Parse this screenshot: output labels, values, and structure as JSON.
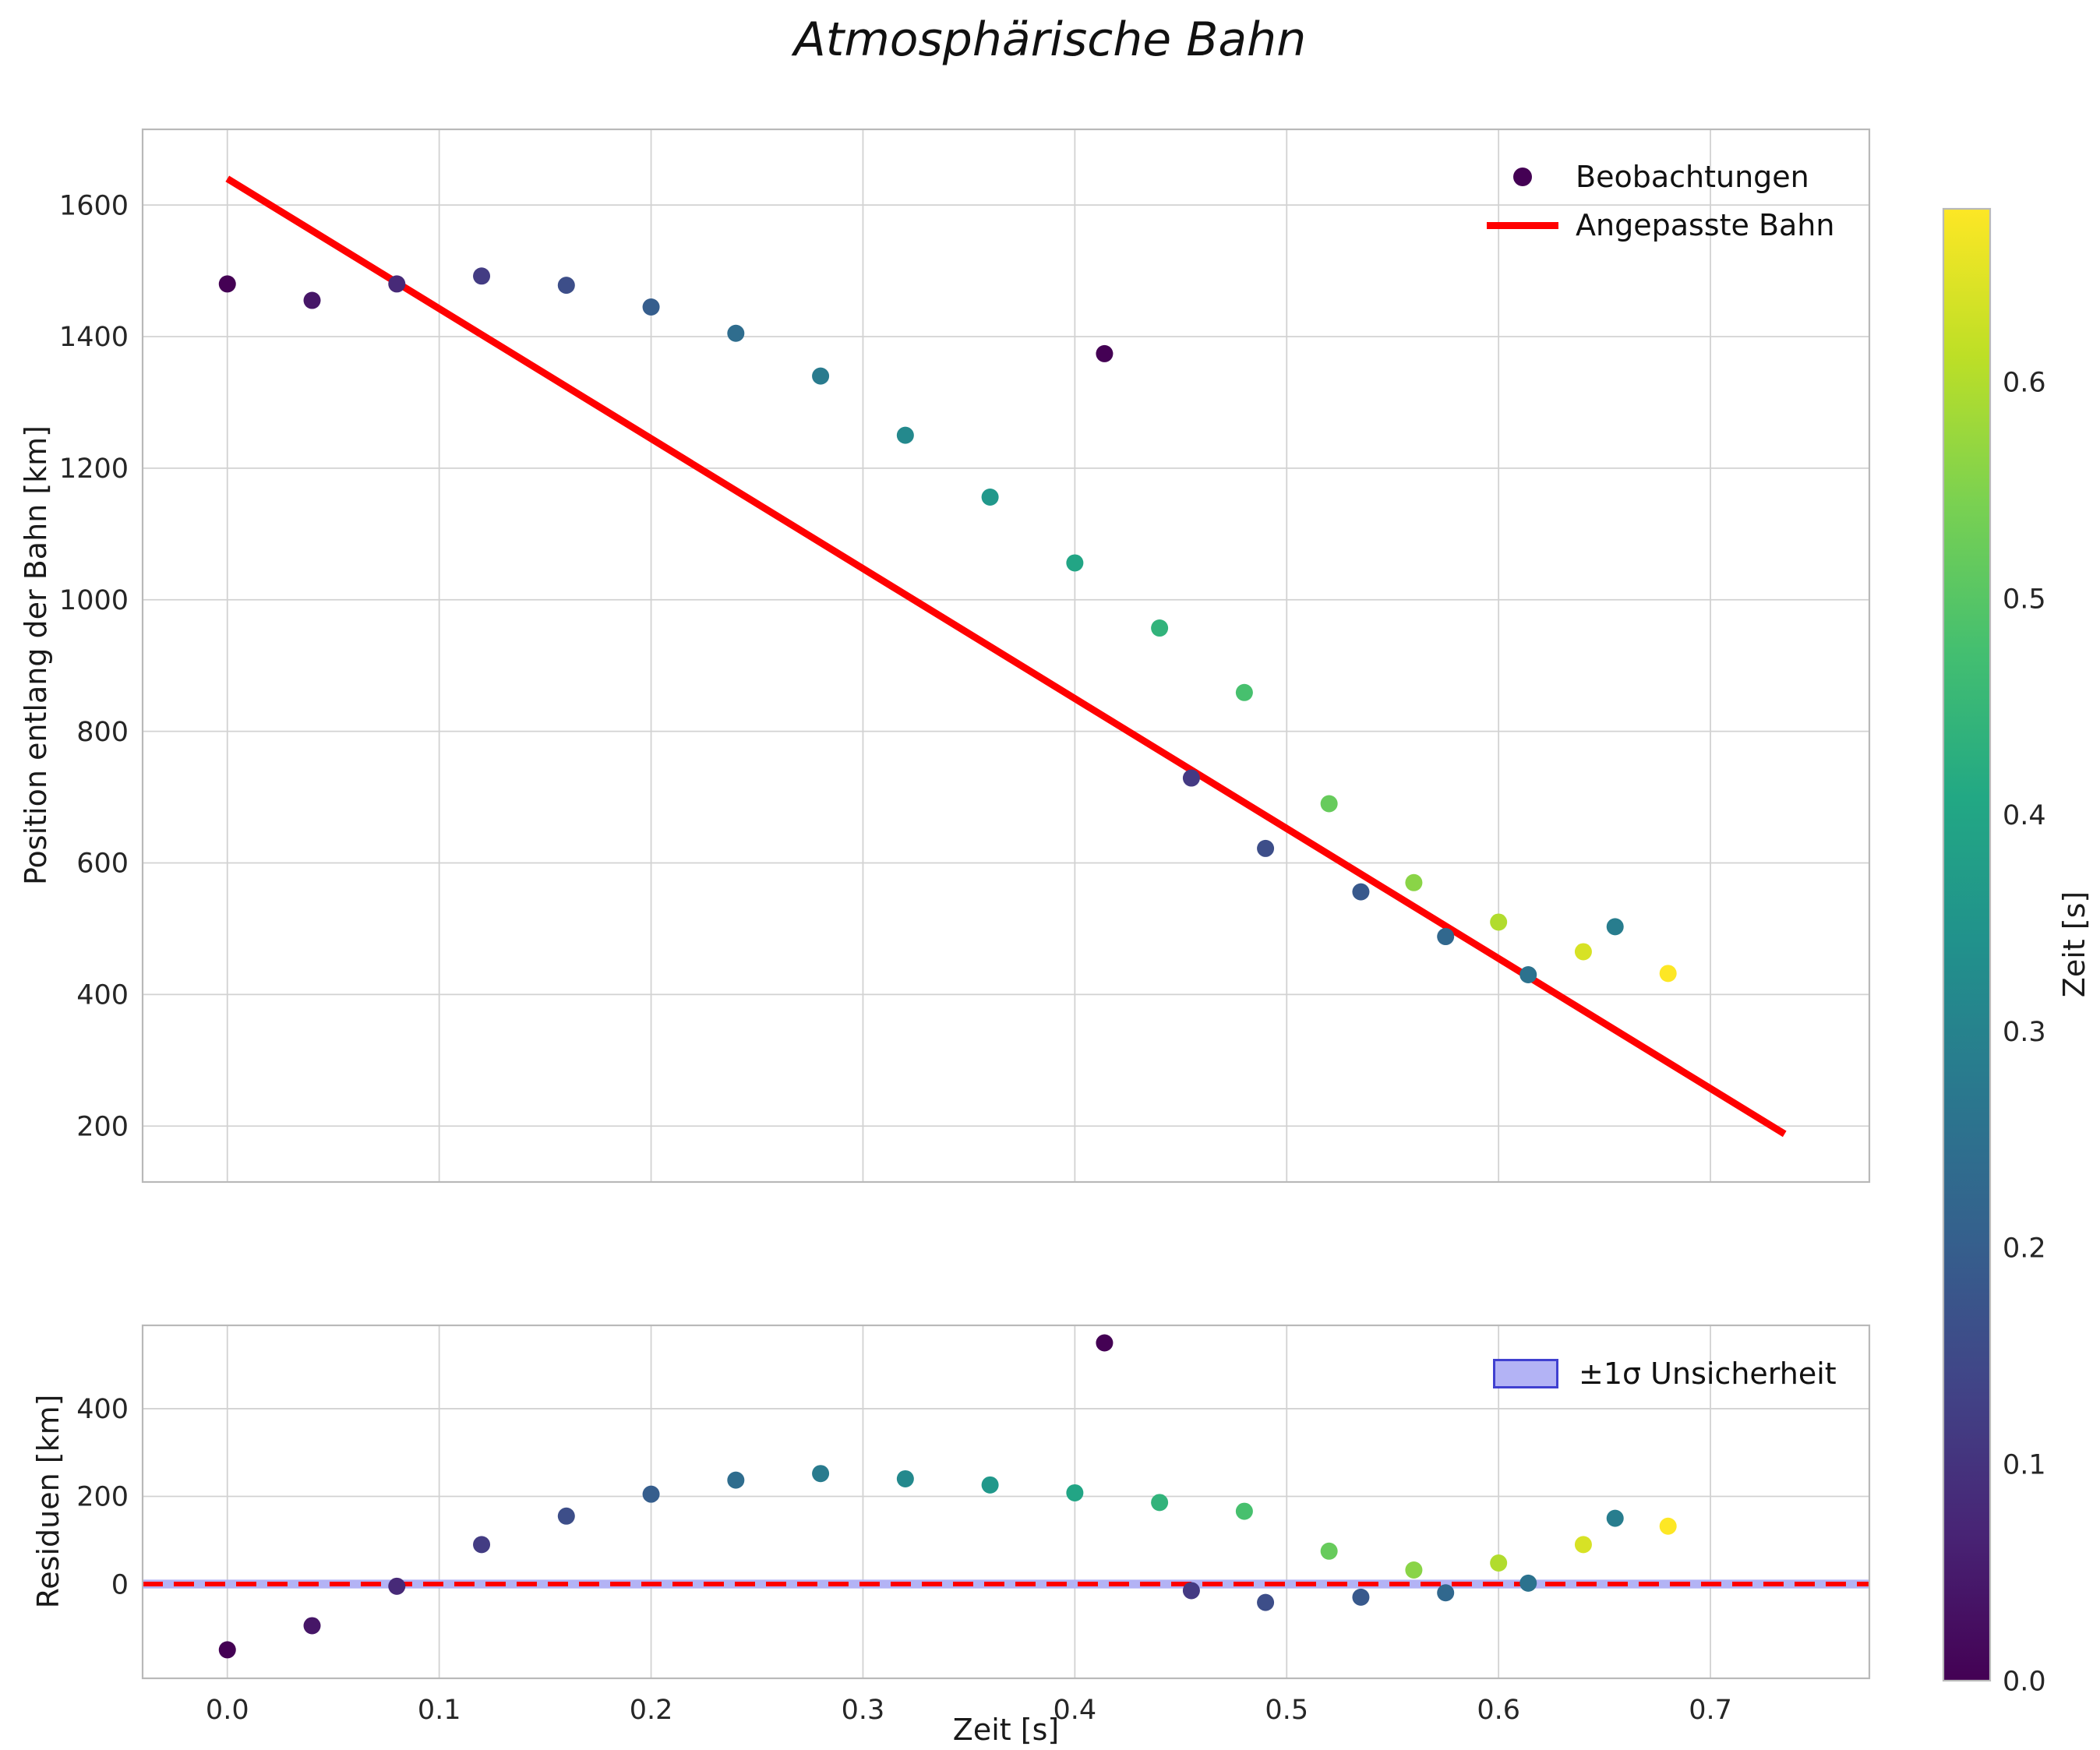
{
  "chart_data": {
    "type": "scatter",
    "title": "Atmosphärische Bahn",
    "xlabel": "Zeit [s]",
    "xlim": [
      -0.04,
      0.775
    ],
    "x_ticks": {
      "values": [
        0.0,
        0.1,
        0.2,
        0.3,
        0.4,
        0.5,
        0.6,
        0.7
      ],
      "labels": [
        "0.0",
        "0.1",
        "0.2",
        "0.3",
        "0.4",
        "0.5",
        "0.6",
        "0.7"
      ]
    },
    "main_panel": {
      "ylabel": "Position entlang der Bahn [km]",
      "ylim": [
        115,
        1715
      ],
      "y_ticks": {
        "values": [
          200,
          400,
          600,
          800,
          1000,
          1200,
          1400,
          1600
        ],
        "labels": [
          "200",
          "400",
          "600",
          "800",
          "1000",
          "1200",
          "1400",
          "1600"
        ]
      },
      "grid": true,
      "legend": [
        {
          "label": "Beobachtungen",
          "marker": "dot",
          "color": "#440154"
        },
        {
          "label": "Angepasste Bahn",
          "marker": "line",
          "color": "#ff0000"
        }
      ],
      "fit_line": {
        "label": "Angepasste Bahn",
        "color": "#ff0000",
        "x0": 0.0,
        "y0": 1640,
        "x1": 0.735,
        "y1": 188
      }
    },
    "residual_panel": {
      "ylabel": "Residuen [km]",
      "ylim": [
        -215,
        590
      ],
      "y_ticks": {
        "values": [
          0,
          200,
          400
        ],
        "labels": [
          "0",
          "200",
          "400"
        ]
      },
      "grid": true,
      "zero_line": {
        "y": 0,
        "color": "#ff0000",
        "style": "dashed"
      },
      "uncertainty_band": {
        "label": "±1σ Unsicherheit",
        "half_width_km": 10,
        "fill": "#b3b3f5",
        "edge": "#4040d0"
      },
      "legend": [
        {
          "label": "±1σ Unsicherheit",
          "marker": "band",
          "fill": "#b3b3f5",
          "edge": "#4040d0"
        }
      ]
    },
    "points": [
      {
        "t": 0.0,
        "pos": 1480,
        "res": -150,
        "color": "#440154"
      },
      {
        "t": 0.04,
        "pos": 1455,
        "res": -95,
        "color": "#461667"
      },
      {
        "t": 0.08,
        "pos": 1480,
        "res": -5,
        "color": "#472a78"
      },
      {
        "t": 0.12,
        "pos": 1492,
        "res": 90,
        "color": "#433c83"
      },
      {
        "t": 0.16,
        "pos": 1478,
        "res": 155,
        "color": "#3d4e89"
      },
      {
        "t": 0.2,
        "pos": 1445,
        "res": 205,
        "color": "#365e8d"
      },
      {
        "t": 0.24,
        "pos": 1405,
        "res": 237,
        "color": "#2f6d8e"
      },
      {
        "t": 0.28,
        "pos": 1340,
        "res": 252,
        "color": "#297b8e"
      },
      {
        "t": 0.32,
        "pos": 1250,
        "res": 240,
        "color": "#24898d"
      },
      {
        "t": 0.36,
        "pos": 1156,
        "res": 226,
        "color": "#21988b"
      },
      {
        "t": 0.4,
        "pos": 1056,
        "res": 208,
        "color": "#22a585"
      },
      {
        "t": 0.414,
        "pos": 1374,
        "res": 550,
        "color": "#440154"
      },
      {
        "t": 0.44,
        "pos": 957,
        "res": 186,
        "color": "#32b37b"
      },
      {
        "t": 0.455,
        "pos": 729,
        "res": -15,
        "color": "#443a83"
      },
      {
        "t": 0.48,
        "pos": 859,
        "res": 166,
        "color": "#47c06e"
      },
      {
        "t": 0.49,
        "pos": 622,
        "res": -42,
        "color": "#3d4e89"
      },
      {
        "t": 0.52,
        "pos": 690,
        "res": 75,
        "color": "#67cb5c"
      },
      {
        "t": 0.535,
        "pos": 556,
        "res": -30,
        "color": "#38598c"
      },
      {
        "t": 0.56,
        "pos": 570,
        "res": 32,
        "color": "#8ad447"
      },
      {
        "t": 0.575,
        "pos": 488,
        "res": -20,
        "color": "#31688e"
      },
      {
        "t": 0.6,
        "pos": 510,
        "res": 48,
        "color": "#b1dc2e"
      },
      {
        "t": 0.614,
        "pos": 430,
        "res": 2,
        "color": "#2c728e"
      },
      {
        "t": 0.64,
        "pos": 465,
        "res": 90,
        "color": "#d7e225"
      },
      {
        "t": 0.655,
        "pos": 503,
        "res": 150,
        "color": "#287d8e"
      },
      {
        "t": 0.68,
        "pos": 432,
        "res": 132,
        "color": "#fde725"
      }
    ],
    "colorbar": {
      "label": "Zeit [s]",
      "min": 0.0,
      "max": 0.68,
      "colormap": "viridis",
      "ticks": {
        "values": [
          0.0,
          0.1,
          0.2,
          0.3,
          0.4,
          0.5,
          0.6
        ],
        "labels": [
          "0.0",
          "0.1",
          "0.2",
          "0.3",
          "0.4",
          "0.5",
          "0.6"
        ]
      },
      "gradient_stops": [
        {
          "offset": 0.0,
          "color": "#440154"
        },
        {
          "offset": 0.1,
          "color": "#482475"
        },
        {
          "offset": 0.2,
          "color": "#414487"
        },
        {
          "offset": 0.3,
          "color": "#35608d"
        },
        {
          "offset": 0.4,
          "color": "#2a788e"
        },
        {
          "offset": 0.5,
          "color": "#21918c"
        },
        {
          "offset": 0.6,
          "color": "#22a884"
        },
        {
          "offset": 0.7,
          "color": "#44bf70"
        },
        {
          "offset": 0.8,
          "color": "#7ad151"
        },
        {
          "offset": 0.9,
          "color": "#bddf26"
        },
        {
          "offset": 1.0,
          "color": "#fde725"
        }
      ]
    }
  }
}
